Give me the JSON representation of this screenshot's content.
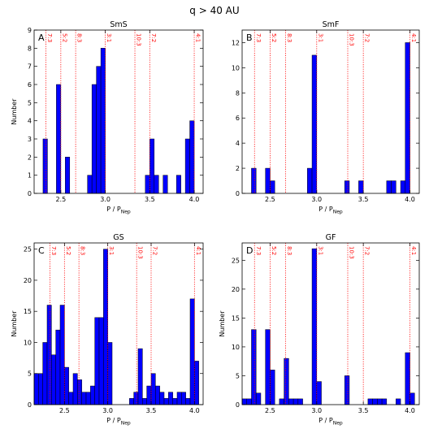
{
  "suptitle": "q > 40 AU",
  "colors": {
    "bar": "#0000ff",
    "resonance": "#ff0000",
    "axis": "#000000"
  },
  "chart_data": [
    {
      "type": "bar",
      "panel_letter": "A",
      "title": "SmS",
      "xlabel": "P / P",
      "xlabel_sub": "Nep",
      "ylabel": "Number",
      "xlim": [
        2.2,
        4.1
      ],
      "ylim": [
        0,
        9
      ],
      "bin_width": 0.05,
      "xticks": [
        2.5,
        3.0,
        3.5,
        4.0
      ],
      "xticklabels": [
        "2.5",
        "3.0",
        "3.5",
        "4.0"
      ],
      "yticks": [
        0,
        1,
        2,
        3,
        4,
        5,
        6,
        7,
        8,
        9
      ],
      "bars": [
        [
          2.3,
          3
        ],
        [
          2.45,
          6
        ],
        [
          2.55,
          2
        ],
        [
          2.8,
          1
        ],
        [
          2.85,
          6
        ],
        [
          2.9,
          7
        ],
        [
          2.95,
          8
        ],
        [
          3.45,
          1
        ],
        [
          3.5,
          3
        ],
        [
          3.55,
          1
        ],
        [
          3.65,
          1
        ],
        [
          3.8,
          1
        ],
        [
          3.9,
          3
        ],
        [
          3.95,
          4
        ]
      ],
      "resonances": [
        {
          "x": 2.333,
          "label": "7:3"
        },
        {
          "x": 2.5,
          "label": "5:2"
        },
        {
          "x": 2.667,
          "label": "8:3"
        },
        {
          "x": 3.0,
          "label": "3:1"
        },
        {
          "x": 3.333,
          "label": "10:3"
        },
        {
          "x": 3.5,
          "label": "7:2"
        },
        {
          "x": 4.0,
          "label": "4:1"
        }
      ]
    },
    {
      "type": "bar",
      "panel_letter": "B",
      "title": "SmF",
      "xlabel": "P / P",
      "xlabel_sub": "Nep",
      "ylabel": "",
      "xlim": [
        2.2,
        4.1
      ],
      "ylim": [
        0,
        13
      ],
      "bin_width": 0.05,
      "xticks": [
        2.5,
        3.0,
        3.5,
        4.0
      ],
      "xticklabels": [
        "2.5",
        "3.0",
        "3.5",
        "4.0"
      ],
      "yticks": [
        0,
        2,
        4,
        6,
        8,
        10,
        12
      ],
      "bars": [
        [
          2.3,
          2
        ],
        [
          2.45,
          2
        ],
        [
          2.5,
          1
        ],
        [
          2.9,
          2
        ],
        [
          2.95,
          11
        ],
        [
          3.3,
          1
        ],
        [
          3.45,
          1
        ],
        [
          3.75,
          1
        ],
        [
          3.8,
          1
        ],
        [
          3.9,
          1
        ],
        [
          3.95,
          12
        ]
      ],
      "resonances": [
        {
          "x": 2.333,
          "label": "7:3"
        },
        {
          "x": 2.5,
          "label": "5:2"
        },
        {
          "x": 2.667,
          "label": "8:3"
        },
        {
          "x": 3.0,
          "label": "3:1"
        },
        {
          "x": 3.333,
          "label": "10:3"
        },
        {
          "x": 3.5,
          "label": "7:2"
        },
        {
          "x": 4.0,
          "label": "4:1"
        }
      ]
    },
    {
      "type": "bar",
      "panel_letter": "C",
      "title": "GS",
      "xlabel": "P / P",
      "xlabel_sub": "Nep",
      "ylabel": "Number",
      "xlim": [
        2.15,
        4.1
      ],
      "ylim": [
        0,
        26
      ],
      "bin_width": 0.05,
      "xticks": [
        2.5,
        3.0,
        3.5,
        4.0
      ],
      "xticklabels": [
        "2.5",
        "3.0",
        "3.5",
        "4.0"
      ],
      "yticks": [
        0,
        5,
        10,
        15,
        20,
        25
      ],
      "bars": [
        [
          2.15,
          5
        ],
        [
          2.2,
          5
        ],
        [
          2.25,
          10
        ],
        [
          2.3,
          16
        ],
        [
          2.35,
          8
        ],
        [
          2.4,
          12
        ],
        [
          2.45,
          16
        ],
        [
          2.5,
          6
        ],
        [
          2.55,
          2
        ],
        [
          2.6,
          5
        ],
        [
          2.65,
          4
        ],
        [
          2.7,
          2
        ],
        [
          2.75,
          2
        ],
        [
          2.8,
          3
        ],
        [
          2.85,
          14
        ],
        [
          2.9,
          14
        ],
        [
          2.95,
          25
        ],
        [
          3.0,
          10
        ],
        [
          3.25,
          1
        ],
        [
          3.3,
          2
        ],
        [
          3.35,
          9
        ],
        [
          3.4,
          1
        ],
        [
          3.45,
          3
        ],
        [
          3.5,
          5
        ],
        [
          3.55,
          3
        ],
        [
          3.6,
          2
        ],
        [
          3.65,
          1
        ],
        [
          3.7,
          2
        ],
        [
          3.75,
          1
        ],
        [
          3.8,
          2
        ],
        [
          3.85,
          2
        ],
        [
          3.9,
          1
        ],
        [
          3.95,
          17
        ],
        [
          4.0,
          7
        ]
      ],
      "resonances": [
        {
          "x": 2.333,
          "label": "7:3"
        },
        {
          "x": 2.5,
          "label": "5:2"
        },
        {
          "x": 2.667,
          "label": "8:3"
        },
        {
          "x": 3.0,
          "label": "3:1"
        },
        {
          "x": 3.333,
          "label": "10:3"
        },
        {
          "x": 3.5,
          "label": "7:2"
        },
        {
          "x": 4.0,
          "label": "4:1"
        }
      ]
    },
    {
      "type": "bar",
      "panel_letter": "D",
      "title": "GF",
      "xlabel": "P / P",
      "xlabel_sub": "Nep",
      "ylabel": "Number",
      "xlim": [
        2.2,
        4.1
      ],
      "ylim": [
        0,
        28
      ],
      "bin_width": 0.05,
      "xticks": [
        2.5,
        3.0,
        3.5,
        4.0
      ],
      "xticklabels": [
        "2.5",
        "3.0",
        "3.5",
        "4.0"
      ],
      "yticks": [
        0,
        5,
        10,
        15,
        20,
        25
      ],
      "bars": [
        [
          2.2,
          1
        ],
        [
          2.25,
          1
        ],
        [
          2.3,
          13
        ],
        [
          2.35,
          2
        ],
        [
          2.45,
          13
        ],
        [
          2.5,
          6
        ],
        [
          2.6,
          1
        ],
        [
          2.65,
          8
        ],
        [
          2.7,
          1
        ],
        [
          2.75,
          1
        ],
        [
          2.8,
          1
        ],
        [
          2.95,
          27
        ],
        [
          3.0,
          4
        ],
        [
          3.3,
          5
        ],
        [
          3.55,
          1
        ],
        [
          3.6,
          1
        ],
        [
          3.65,
          1
        ],
        [
          3.7,
          1
        ],
        [
          3.85,
          1
        ],
        [
          3.95,
          9
        ],
        [
          4.0,
          2
        ]
      ],
      "resonances": [
        {
          "x": 2.333,
          "label": "7:3"
        },
        {
          "x": 2.5,
          "label": "5:2"
        },
        {
          "x": 2.667,
          "label": "8:3"
        },
        {
          "x": 3.0,
          "label": "3:1"
        },
        {
          "x": 3.333,
          "label": "10:3"
        },
        {
          "x": 3.5,
          "label": "7:2"
        },
        {
          "x": 4.0,
          "label": "4:1"
        }
      ]
    }
  ]
}
